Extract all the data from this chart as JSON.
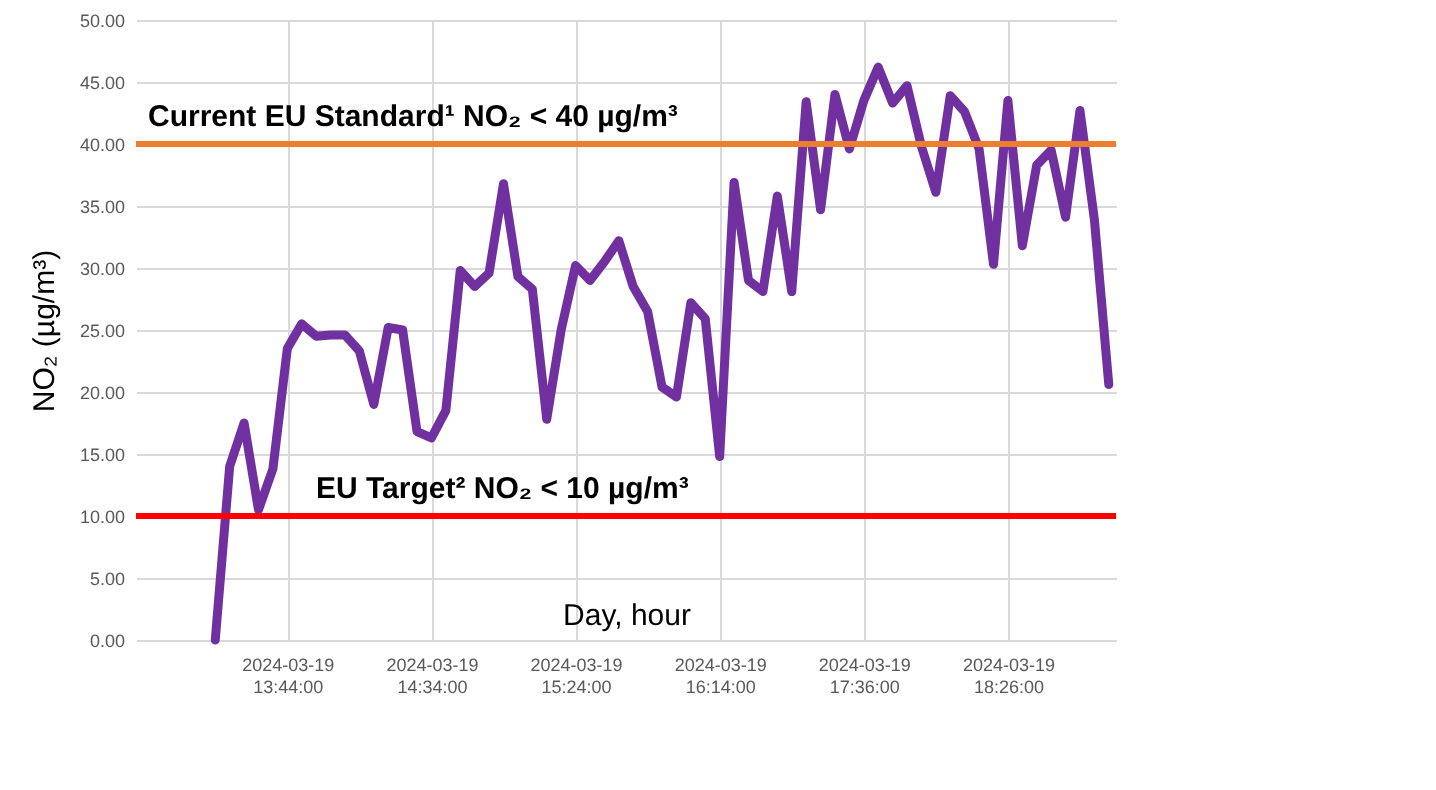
{
  "chart_data": {
    "type": "line",
    "xlabel": "Day, hour",
    "ylabel": "NO₂ (µg/m³)",
    "categories": [
      null,
      null,
      null,
      null,
      null,
      null,
      null,
      null,
      null,
      null,
      "2024-03-19 13:44:00",
      null,
      null,
      null,
      null,
      null,
      null,
      null,
      null,
      null,
      "2024-03-19 14:34:00",
      null,
      null,
      null,
      null,
      null,
      null,
      null,
      null,
      null,
      "2024-03-19 15:24:00",
      null,
      null,
      null,
      null,
      null,
      null,
      null,
      null,
      null,
      "2024-03-19 16:14:00",
      null,
      null,
      null,
      null,
      null,
      null,
      null,
      null,
      null,
      "2024-03-19 17:36:00",
      null,
      null,
      null,
      null,
      null,
      null,
      null,
      null,
      null,
      "2024-03-19 18:26:00",
      null,
      null,
      null,
      null,
      null,
      null,
      null
    ],
    "series": [
      {
        "color": "#7030a0",
        "values": [
          null,
          null,
          null,
          null,
          null,
          0,
          14,
          17.5,
          10.5,
          13.8,
          23.5,
          25.5,
          24.5,
          24.6,
          24.6,
          23.3,
          19,
          25.2,
          25,
          16.8,
          16.3,
          18.5,
          29.8,
          28.5,
          29.6,
          36.8,
          29.3,
          28.3,
          17.8,
          25,
          30.2,
          29,
          30.5,
          32.2,
          28.5,
          26.5,
          20.4,
          19.6,
          27.2,
          25.9,
          14.8,
          36.9,
          29,
          28.1,
          35.8,
          28.1,
          43.4,
          34.7,
          44,
          39.6,
          43.5,
          46.2,
          43.3,
          44.7,
          39.8,
          36.1,
          43.9,
          42.6,
          39.6,
          30.3,
          43.5,
          31.8,
          38.3,
          39.5,
          34.1,
          42.7,
          33.9,
          20.6
        ]
      }
    ],
    "ylim": [
      0,
      50
    ],
    "yticks": [
      {
        "value": 0,
        "label": "0.00"
      },
      {
        "value": 5,
        "label": "5.00"
      },
      {
        "value": 10,
        "label": "10.00"
      },
      {
        "value": 15,
        "label": "15.00"
      },
      {
        "value": 20,
        "label": "20.00"
      },
      {
        "value": 25,
        "label": "25.00"
      },
      {
        "value": 30,
        "label": "30.00"
      },
      {
        "value": 35,
        "label": "35.00"
      },
      {
        "value": 40,
        "label": "40.00"
      },
      {
        "value": 45,
        "label": "45.00"
      },
      {
        "value": 50,
        "label": "50.00"
      }
    ],
    "grid": true,
    "ref_lines": [
      {
        "axis": "y",
        "value": 40,
        "label": "Current EU Standard¹ NO₂ < 40 µg/m³",
        "color": "#ed7d31"
      },
      {
        "axis": "y",
        "value": 10,
        "label": "EU Target² NO₂ < 10 µg/m³",
        "color": "#ff0000"
      }
    ]
  }
}
